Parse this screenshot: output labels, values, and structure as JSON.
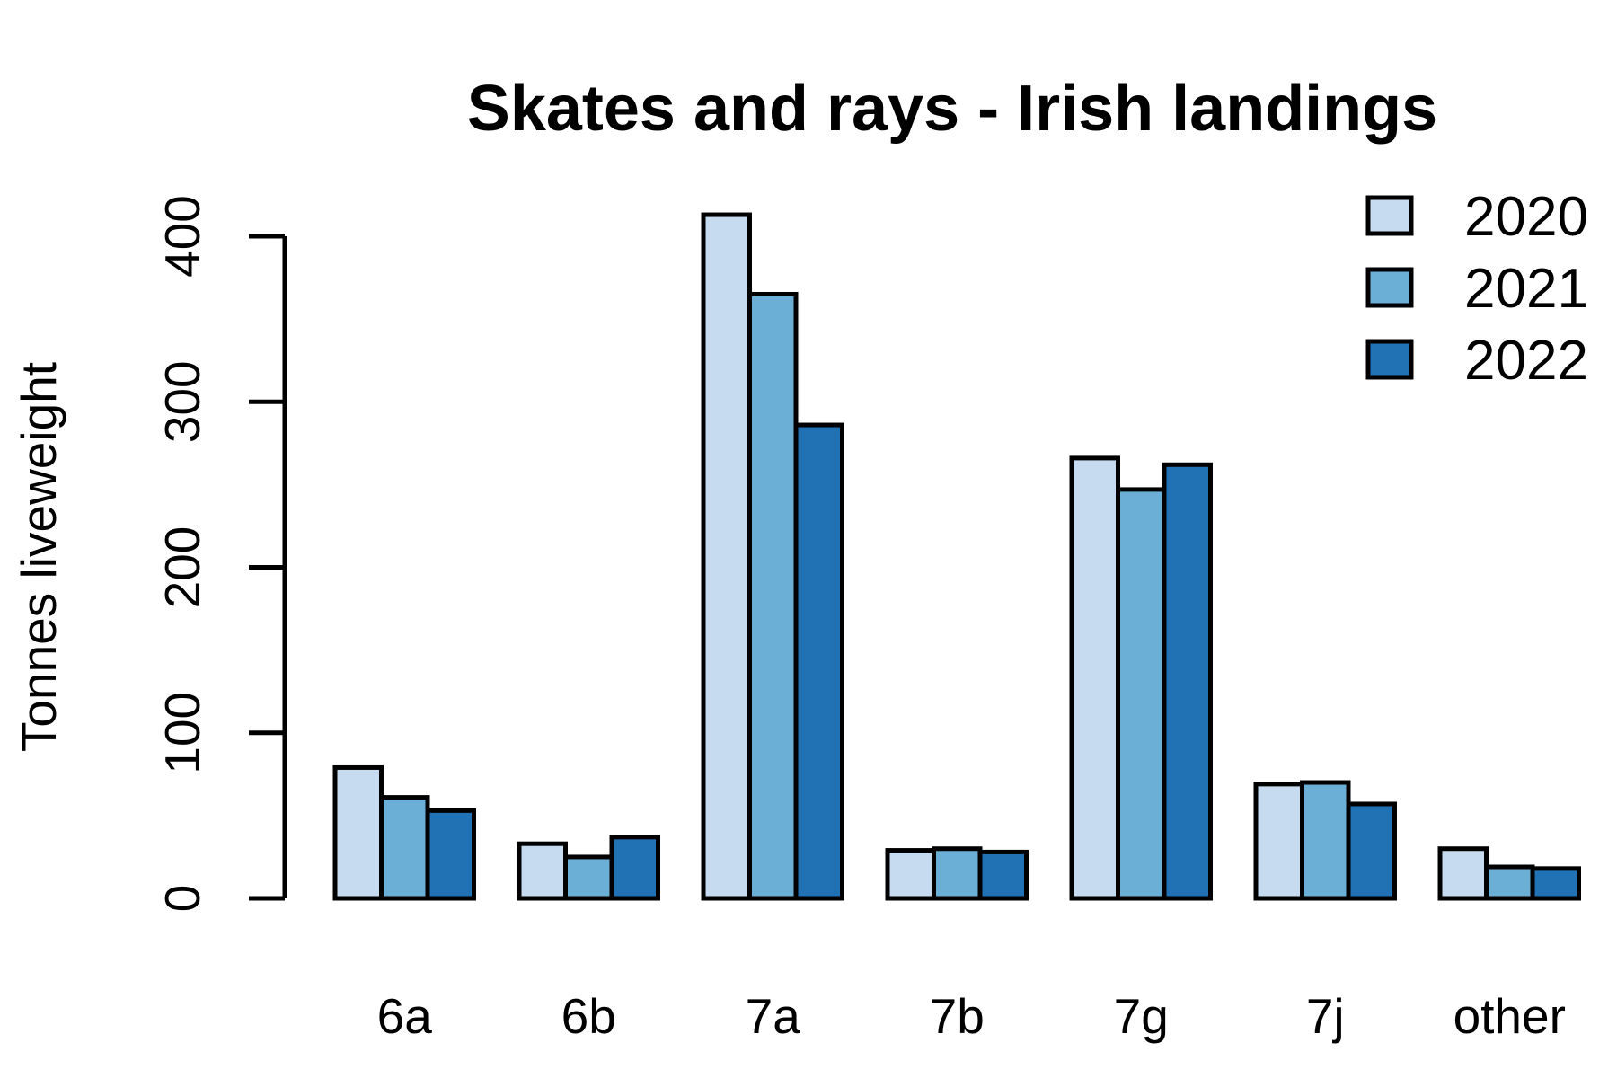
{
  "chart_data": {
    "type": "bar",
    "title": "Skates and rays - Irish landings",
    "xlabel": "",
    "ylabel": "Tonnes liveweight",
    "categories": [
      "6a",
      "6b",
      "7a",
      "7b",
      "7g",
      "7j",
      "other"
    ],
    "series": [
      {
        "name": "2020",
        "color": "#c6dbef",
        "values": [
          79,
          33,
          413,
          29,
          266,
          69,
          30
        ]
      },
      {
        "name": "2021",
        "color": "#6baed6",
        "values": [
          61,
          25,
          365,
          30,
          247,
          70,
          19
        ]
      },
      {
        "name": "2022",
        "color": "#2171b5",
        "values": [
          53,
          37,
          286,
          28,
          262,
          57,
          18
        ]
      }
    ],
    "ylim": [
      0,
      400
    ],
    "yticks": [
      0,
      100,
      200,
      300,
      400
    ],
    "grid": false,
    "legend_position": "top-right"
  }
}
